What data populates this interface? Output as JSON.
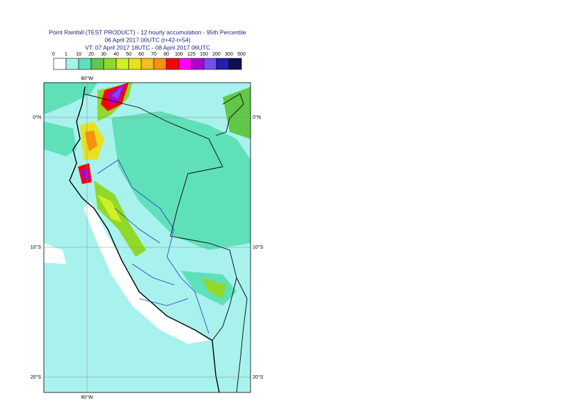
{
  "header": {
    "title_lines": [
      "Point Rainfall (TEST PRODUCT) - 12 hourly accumulation - 95th Percentile",
      "06 April 2017 00UTC (t+42-t+54)",
      "VT: 07 April 2017 18UTC - 08 April 2017 06UTC"
    ]
  },
  "legend": {
    "labels": [
      "0",
      "1",
      "10",
      "20",
      "30",
      "40",
      "50",
      "60",
      "70",
      "80",
      "100",
      "125",
      "150",
      "200",
      "300",
      "500"
    ],
    "colors": [
      "#ffffff",
      "#a8f2ee",
      "#60e0b8",
      "#60c848",
      "#90d82a",
      "#d0f028",
      "#e8e020",
      "#f0c020",
      "#f89010",
      "#ff0000",
      "#ff00ff",
      "#b000d0",
      "#7050f0",
      "#2020b0",
      "#101050"
    ]
  },
  "map": {
    "lon_label": "80°W",
    "lat_labels": [
      "0°N",
      "10°S",
      "20°S"
    ]
  }
}
